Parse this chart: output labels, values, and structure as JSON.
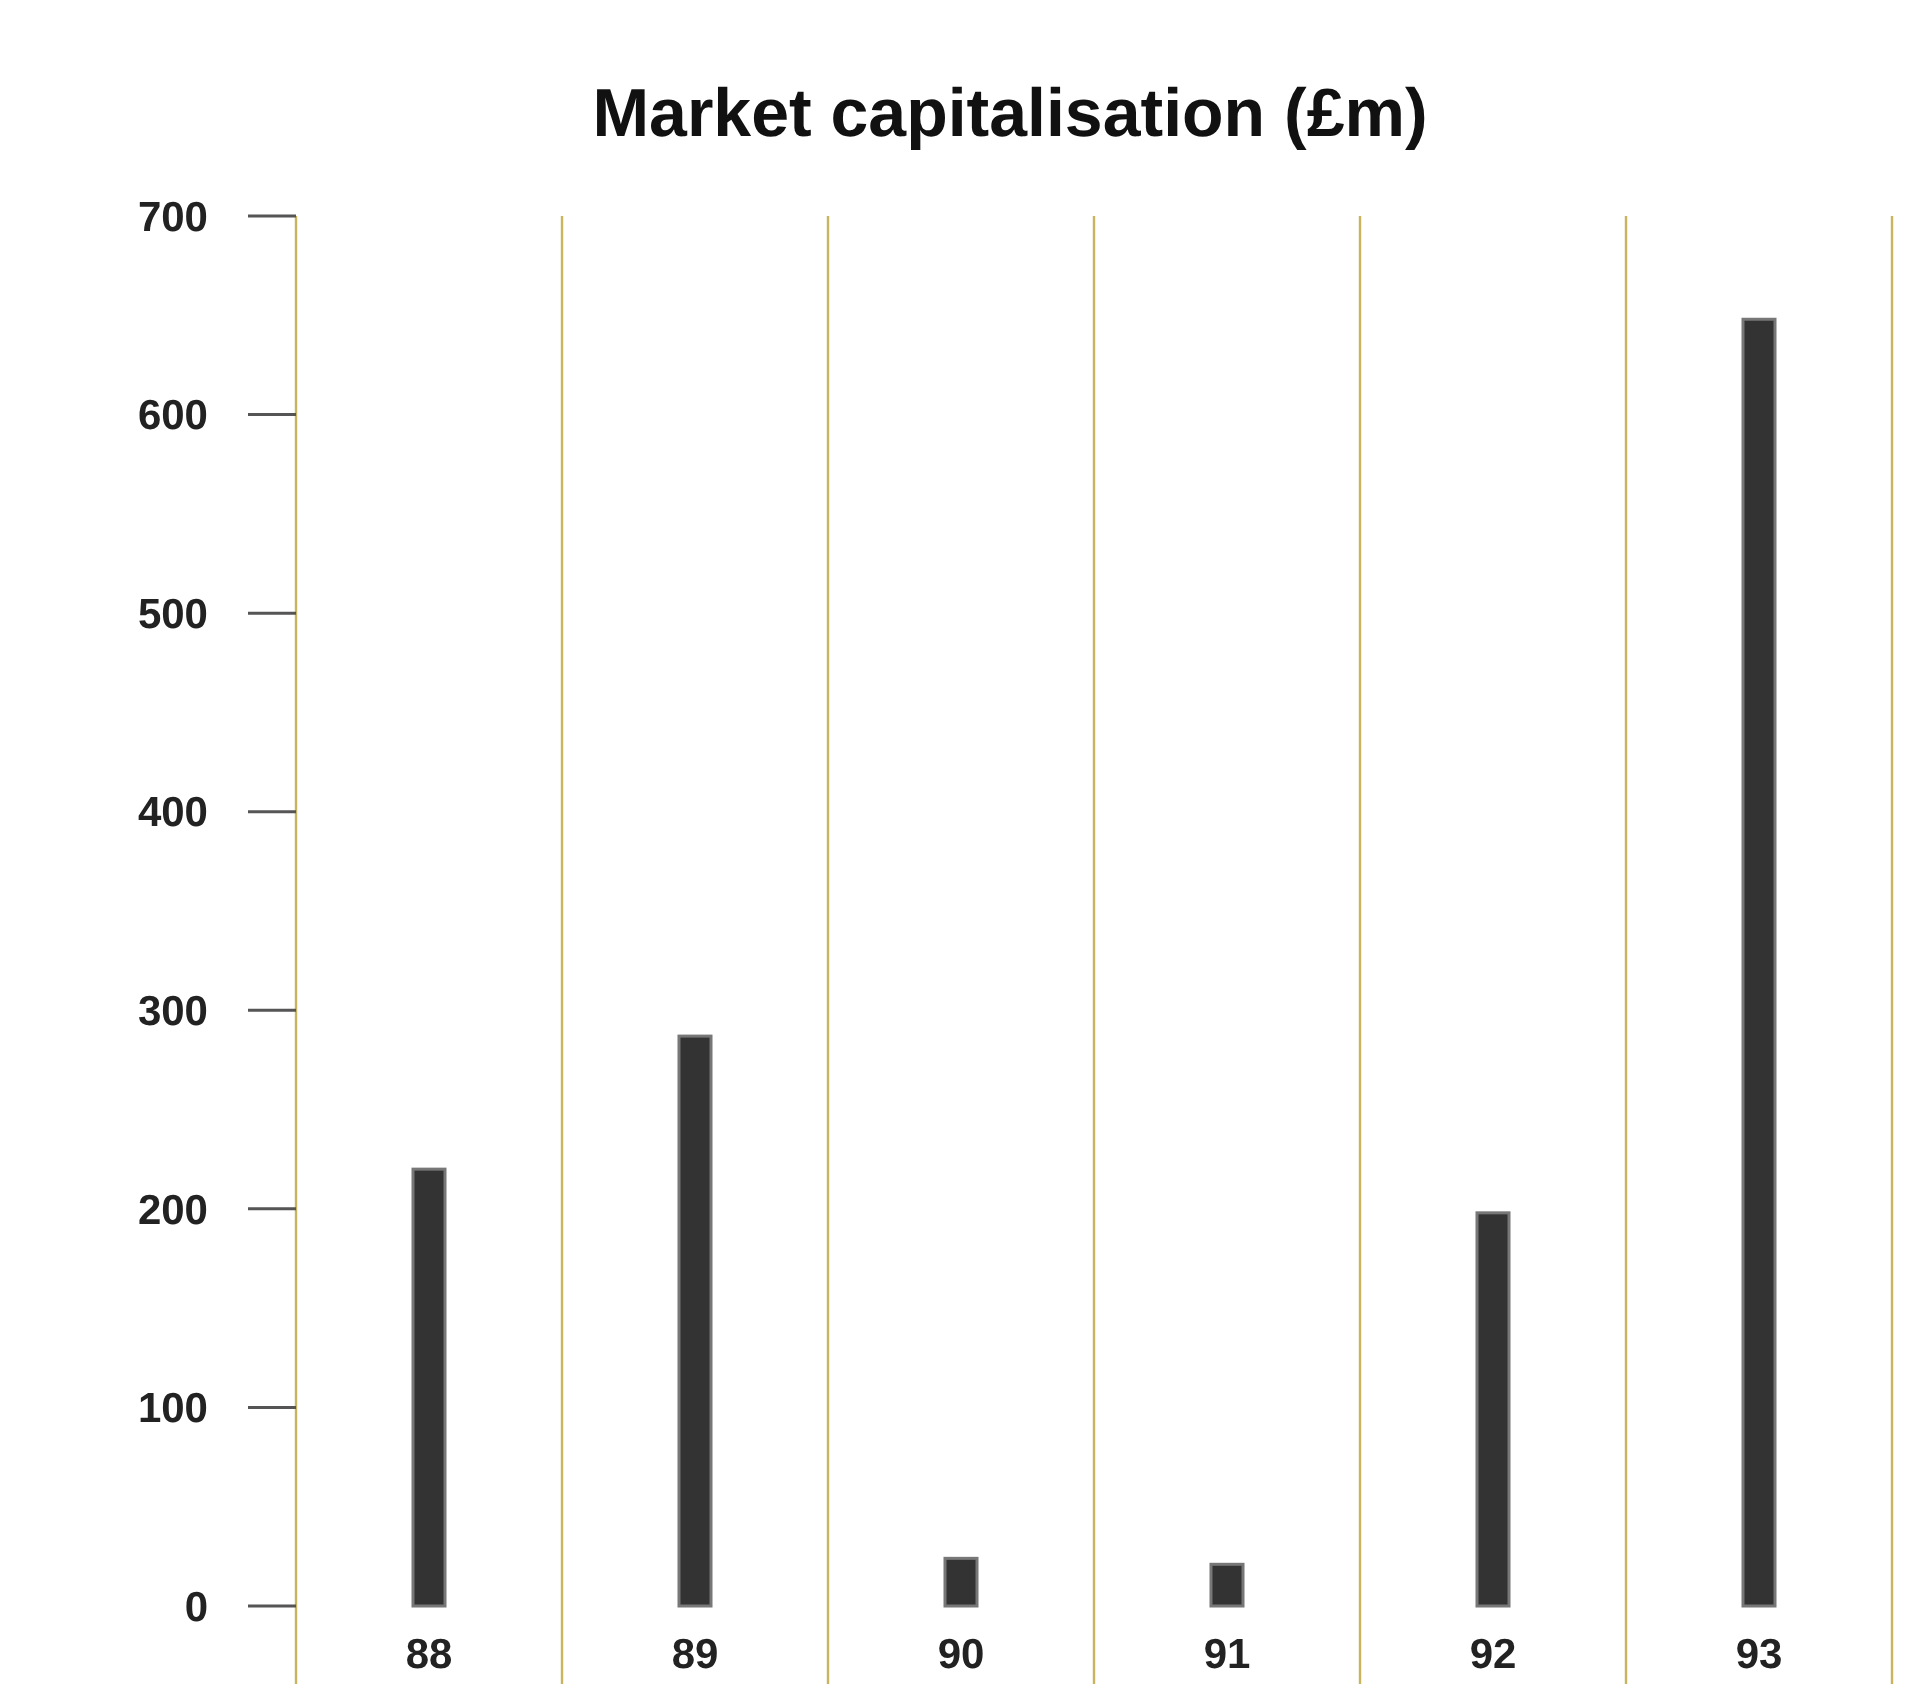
{
  "chart_data": {
    "type": "bar",
    "title": "Market capitalisation (£m)",
    "categories": [
      "88",
      "89",
      "90",
      "91",
      "92",
      "93"
    ],
    "values": [
      220,
      287,
      24,
      21,
      198,
      648
    ],
    "color": "#333333",
    "ylim": [
      0,
      700
    ],
    "yticks": [
      0,
      100,
      200,
      300,
      400,
      500,
      600,
      700
    ],
    "grid": "x"
  }
}
